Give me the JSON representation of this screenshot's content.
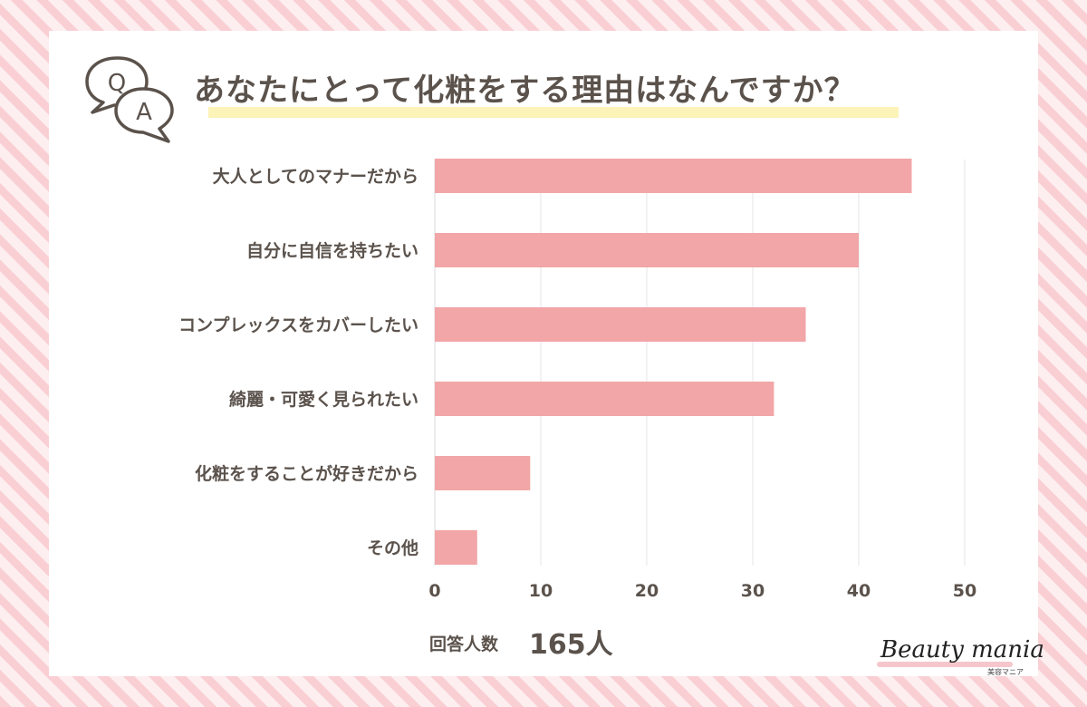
{
  "title": "あなたにとって化粧をする理由はなんですか？",
  "chart_data": {
    "type": "bar",
    "orientation": "horizontal",
    "categories": [
      "大人としてのマナーだから",
      "自分に自信を持ちたい",
      "コンプレックスをカバーしたい",
      "綺麗・可愛く見られたい",
      "化粧をすることが好きだから",
      "その他"
    ],
    "values": [
      45,
      40,
      35,
      32,
      9,
      4
    ],
    "xlim": [
      0,
      50
    ],
    "xticks": [
      0,
      10,
      20,
      30,
      40,
      50
    ],
    "grid": "vertical",
    "bar_color": "#f2a6a8"
  },
  "footer": {
    "label": "回答人数",
    "value": "165人"
  },
  "brand": {
    "main": "Beauty mania",
    "sub": "美容マニア"
  },
  "colors": {
    "text": "#5b524c",
    "highlight": "#fcf3b8",
    "stripe": "#f9cfd3"
  },
  "icons": {
    "qa": "qa-speech-bubbles-icon"
  }
}
